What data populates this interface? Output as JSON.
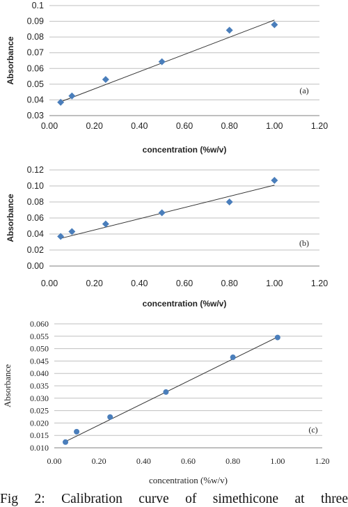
{
  "caption": "Fig 2: Calibration curve of simethicone at three",
  "colors": {
    "marker": "#4a7ebb",
    "trendline": "#333333",
    "grid": "#bfbfbf",
    "axis": "#7f7f7f"
  },
  "chart_data": [
    {
      "type": "scatter",
      "panel_label": "(a)",
      "xlabel": "concentration (%w/v)",
      "ylabel": "Absorbance",
      "xlim": [
        0,
        1.2
      ],
      "ylim": [
        0.03,
        0.1
      ],
      "x_ticks": [
        "0.00",
        "0.20",
        "0.40",
        "0.60",
        "0.80",
        "1.00",
        "1.20"
      ],
      "y_ticks": [
        "0.03",
        "0.04",
        "0.05",
        "0.06",
        "0.07",
        "0.08",
        "0.09",
        "0.1"
      ],
      "grid": "horizontal",
      "marker": "diamond",
      "points": [
        {
          "x": 0.05,
          "y": 0.0385
        },
        {
          "x": 0.1,
          "y": 0.0425
        },
        {
          "x": 0.25,
          "y": 0.053
        },
        {
          "x": 0.5,
          "y": 0.0643
        },
        {
          "x": 0.8,
          "y": 0.0843
        },
        {
          "x": 1.0,
          "y": 0.0878
        }
      ],
      "trendline": {
        "x": [
          0.05,
          1.0
        ],
        "y": [
          0.0388,
          0.0908
        ]
      }
    },
    {
      "type": "scatter",
      "panel_label": "(b)",
      "xlabel": "concentration (%w/v)",
      "ylabel": "Absorbance",
      "xlim": [
        0,
        1.2
      ],
      "ylim": [
        0,
        0.12
      ],
      "x_ticks": [
        "0.00",
        "0.20",
        "0.40",
        "0.60",
        "0.80",
        "1.00",
        "1.20"
      ],
      "y_ticks": [
        "0.00",
        "0.02",
        "0.04",
        "0.06",
        "0.08",
        "0.10",
        "0.12"
      ],
      "grid": "horizontal",
      "marker": "diamond",
      "points": [
        {
          "x": 0.05,
          "y": 0.037
        },
        {
          "x": 0.1,
          "y": 0.043
        },
        {
          "x": 0.25,
          "y": 0.0525
        },
        {
          "x": 0.5,
          "y": 0.0665
        },
        {
          "x": 0.8,
          "y": 0.08
        },
        {
          "x": 1.0,
          "y": 0.107
        }
      ],
      "trendline": {
        "x": [
          0.05,
          1.0
        ],
        "y": [
          0.0345,
          0.101
        ]
      }
    },
    {
      "type": "scatter",
      "panel_label": "(c)",
      "xlabel": "concentration (%w/v)",
      "ylabel": "Absorbance",
      "xlim": [
        0,
        1.2
      ],
      "ylim": [
        0.01,
        0.06
      ],
      "x_ticks": [
        "0.00",
        "0.20",
        "0.40",
        "0.60",
        "0.80",
        "1.00",
        "1.20"
      ],
      "y_ticks": [
        "0.010",
        "0.015",
        "0.020",
        "0.025",
        "0.030",
        "0.035",
        "0.040",
        "0.045",
        "0.050",
        "0.055",
        "0.060"
      ],
      "grid": "horizontal",
      "marker": "circle",
      "points": [
        {
          "x": 0.05,
          "y": 0.0123
        },
        {
          "x": 0.1,
          "y": 0.0165
        },
        {
          "x": 0.25,
          "y": 0.0224
        },
        {
          "x": 0.5,
          "y": 0.0325
        },
        {
          "x": 0.8,
          "y": 0.0465
        },
        {
          "x": 1.0,
          "y": 0.0545
        }
      ],
      "trendline": {
        "x": [
          0.05,
          1.0
        ],
        "y": [
          0.0125,
          0.0547
        ]
      }
    }
  ]
}
